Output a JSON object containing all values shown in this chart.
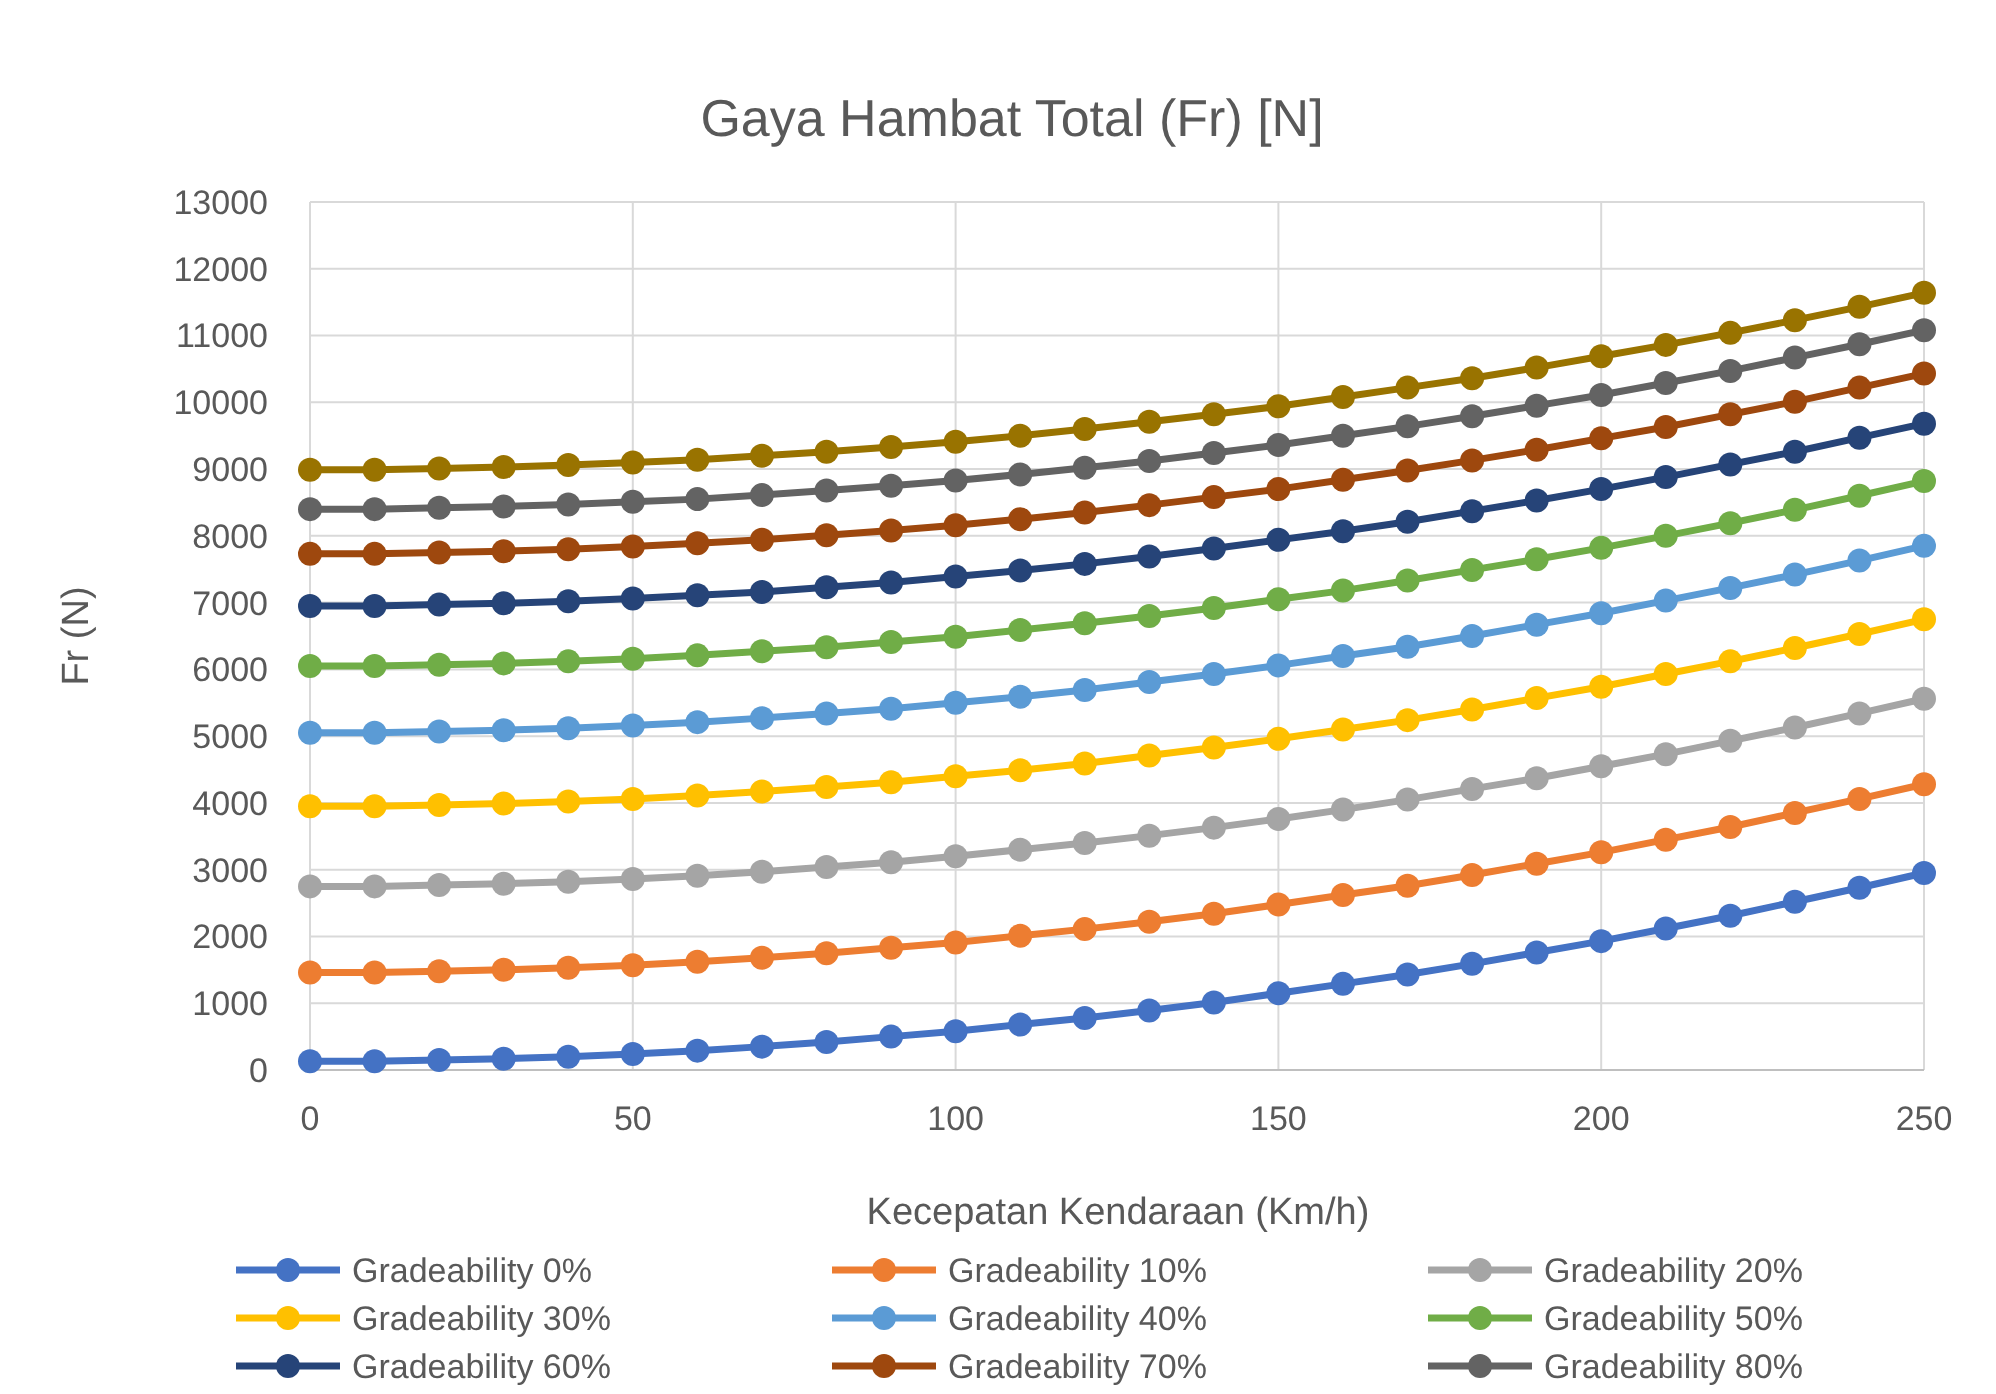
{
  "chart_data": {
    "type": "line",
    "title": "Gaya Hambat Total (Fr) [N]",
    "xlabel": "Kecepatan Kendaraan (Km/h)",
    "ylabel": "Fr (N)",
    "x": [
      0,
      10,
      20,
      30,
      40,
      50,
      60,
      70,
      80,
      90,
      100,
      110,
      120,
      130,
      140,
      150,
      160,
      170,
      180,
      190,
      200,
      210,
      220,
      230,
      240,
      250
    ],
    "xlim": [
      0,
      250
    ],
    "xticks": [
      0,
      50,
      100,
      150,
      200,
      250
    ],
    "ylim": [
      0,
      13000
    ],
    "yticks": [
      0,
      1000,
      2000,
      3000,
      4000,
      5000,
      6000,
      7000,
      8000,
      9000,
      10000,
      11000,
      12000,
      13000
    ],
    "grid": true,
    "legend": "bottom",
    "marker": "circle",
    "line_style": "solid",
    "series": [
      {
        "name": "Gradeability 0%",
        "color": "#4472c4",
        "values": [
          130,
          130,
          150,
          170,
          200,
          240,
          290,
          350,
          420,
          500,
          580,
          680,
          780,
          890,
          1010,
          1150,
          1290,
          1430,
          1590,
          1760,
          1930,
          2120,
          2310,
          2520,
          2730,
          2950
        ]
      },
      {
        "name": "Gradeability 10%",
        "color": "#ed7d31",
        "values": [
          1460,
          1460,
          1480,
          1500,
          1530,
          1570,
          1620,
          1680,
          1750,
          1830,
          1910,
          2010,
          2110,
          2220,
          2340,
          2480,
          2620,
          2760,
          2920,
          3090,
          3260,
          3450,
          3640,
          3850,
          4060,
          4280
        ]
      },
      {
        "name": "Gradeability 20%",
        "color": "#a5a5a5",
        "values": [
          2750,
          2750,
          2770,
          2790,
          2820,
          2860,
          2910,
          2970,
          3040,
          3110,
          3200,
          3300,
          3400,
          3510,
          3630,
          3760,
          3900,
          4050,
          4210,
          4370,
          4550,
          4730,
          4930,
          5130,
          5340,
          5560
        ]
      },
      {
        "name": "Gradeability 30%",
        "color": "#ffc000",
        "values": [
          3950,
          3950,
          3970,
          3990,
          4020,
          4060,
          4110,
          4170,
          4240,
          4310,
          4400,
          4490,
          4590,
          4710,
          4830,
          4960,
          5100,
          5240,
          5400,
          5570,
          5740,
          5930,
          6120,
          6320,
          6530,
          6750
        ]
      },
      {
        "name": "Gradeability 40%",
        "color": "#5b9bd5",
        "values": [
          5050,
          5050,
          5070,
          5090,
          5120,
          5160,
          5210,
          5270,
          5340,
          5410,
          5500,
          5590,
          5690,
          5810,
          5930,
          6060,
          6200,
          6340,
          6500,
          6670,
          6840,
          7030,
          7220,
          7420,
          7630,
          7850
        ]
      },
      {
        "name": "Gradeability 50%",
        "color": "#70ad47",
        "values": [
          6050,
          6050,
          6070,
          6090,
          6120,
          6160,
          6210,
          6270,
          6330,
          6410,
          6490,
          6590,
          6690,
          6800,
          6920,
          7050,
          7180,
          7330,
          7490,
          7650,
          7820,
          8000,
          8190,
          8390,
          8600,
          8820
        ]
      },
      {
        "name": "Gradeability 60%",
        "color": "#264478",
        "values": [
          6950,
          6950,
          6970,
          6990,
          7020,
          7060,
          7110,
          7160,
          7230,
          7300,
          7390,
          7480,
          7580,
          7690,
          7810,
          7940,
          8070,
          8210,
          8370,
          8530,
          8700,
          8880,
          9070,
          9260,
          9470,
          9680
        ]
      },
      {
        "name": "Gradeability 70%",
        "color": "#9e480e",
        "values": [
          7730,
          7730,
          7750,
          7770,
          7800,
          7840,
          7890,
          7940,
          8010,
          8080,
          8160,
          8250,
          8350,
          8460,
          8580,
          8700,
          8840,
          8980,
          9130,
          9290,
          9460,
          9630,
          9820,
          10010,
          10220,
          10430
        ]
      },
      {
        "name": "Gradeability 80%",
        "color": "#636363",
        "values": [
          8400,
          8400,
          8420,
          8440,
          8470,
          8510,
          8550,
          8610,
          8680,
          8750,
          8830,
          8920,
          9020,
          9120,
          9240,
          9360,
          9500,
          9640,
          9790,
          9950,
          10110,
          10290,
          10470,
          10670,
          10870,
          11080
        ]
      },
      {
        "color": "#997300",
        "values": [
          8990,
          8990,
          9010,
          9030,
          9060,
          9100,
          9140,
          9200,
          9260,
          9330,
          9410,
          9500,
          9600,
          9710,
          9820,
          9940,
          10080,
          10220,
          10360,
          10520,
          10690,
          10860,
          11040,
          11230,
          11430,
          11640
        ]
      }
    ]
  }
}
